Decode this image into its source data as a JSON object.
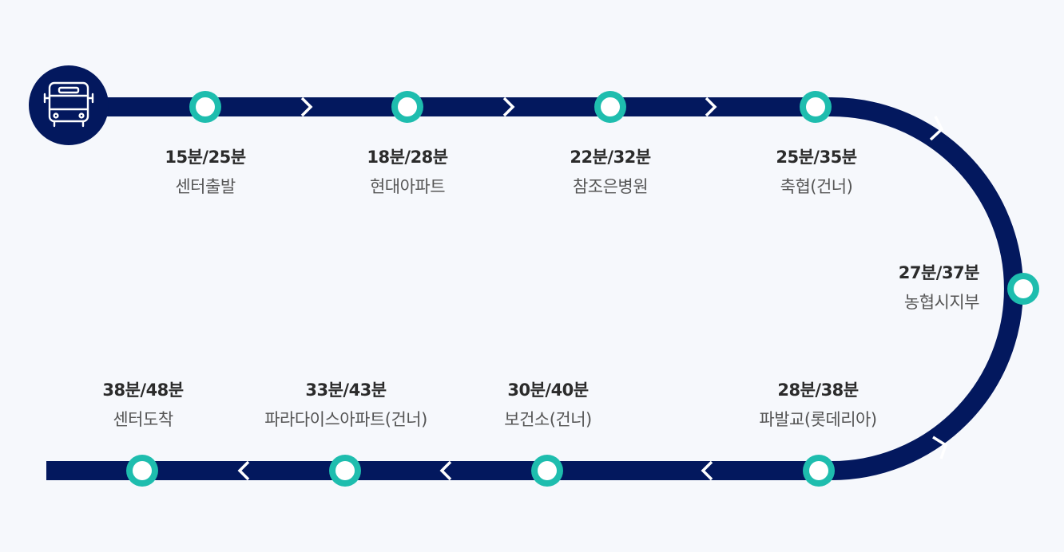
{
  "colors": {
    "route": "#03185e",
    "stop_ring": "#1ebdae",
    "stop_center": "#ffffff",
    "background": "#f6f8fc"
  },
  "start_icon": "bus-icon",
  "stops": [
    {
      "time": "15분/25분",
      "name": "센터출발"
    },
    {
      "time": "18분/28분",
      "name": "현대아파트"
    },
    {
      "time": "22분/32분",
      "name": "참조은병원"
    },
    {
      "time": "25분/35분",
      "name": "축협(건너)"
    },
    {
      "time": "27분/37분",
      "name": "농협시지부"
    },
    {
      "time": "28분/38분",
      "name": "파발교(롯데리아)"
    },
    {
      "time": "30분/40분",
      "name": "보건소(건너)"
    },
    {
      "time": "33분/43분",
      "name": "파라다이스아파트(건너)"
    },
    {
      "time": "38분/48분",
      "name": "센터도착"
    }
  ]
}
